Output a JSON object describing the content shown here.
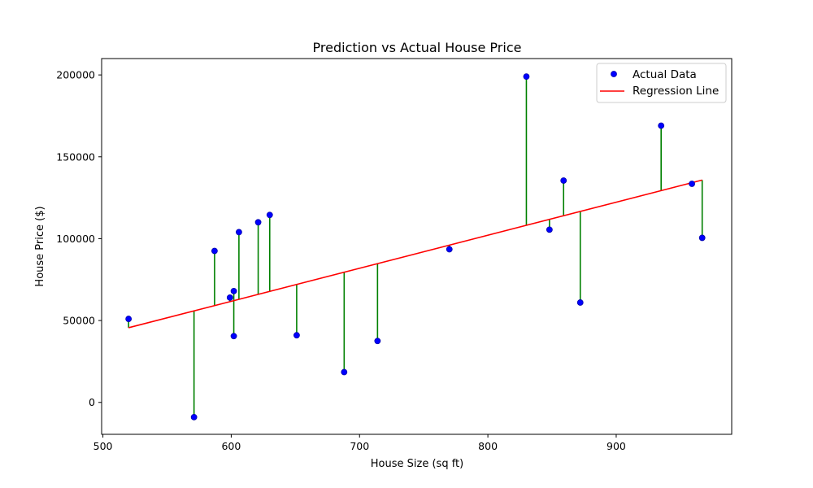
{
  "chart_data": {
    "type": "scatter",
    "title": "Prediction vs Actual House Price",
    "xlabel": "House Size (sq ft)",
    "ylabel": "House Price ($)",
    "xlim": [
      499,
      990
    ],
    "ylim": [
      -19500,
      210000
    ],
    "xticks": [
      500,
      600,
      700,
      800,
      900
    ],
    "yticks": [
      0,
      50000,
      100000,
      150000,
      200000
    ],
    "grid": false,
    "legend_position": "top-right",
    "legend": [
      "Actual Data",
      "Regression Line"
    ],
    "series": [
      {
        "name": "Actual Data",
        "type": "scatter",
        "color": "#0000ff",
        "points": [
          [
            520,
            51000
          ],
          [
            571,
            -9000
          ],
          [
            587,
            92500
          ],
          [
            599,
            64000
          ],
          [
            602,
            68000
          ],
          [
            602,
            40500
          ],
          [
            606,
            104000
          ],
          [
            621,
            110000
          ],
          [
            630,
            114500
          ],
          [
            651,
            41000
          ],
          [
            688,
            18500
          ],
          [
            714,
            37500
          ],
          [
            770,
            93500
          ],
          [
            830,
            199000
          ],
          [
            848,
            105500
          ],
          [
            859,
            135500
          ],
          [
            872,
            61000
          ],
          [
            935,
            169000
          ],
          [
            959,
            133500
          ],
          [
            967,
            100500
          ]
        ]
      },
      {
        "name": "Regression Line",
        "type": "line",
        "color": "#ff0000",
        "points": [
          [
            520,
            45600
          ],
          [
            967,
            135800
          ]
        ]
      }
    ],
    "residual_color": "#008000"
  }
}
